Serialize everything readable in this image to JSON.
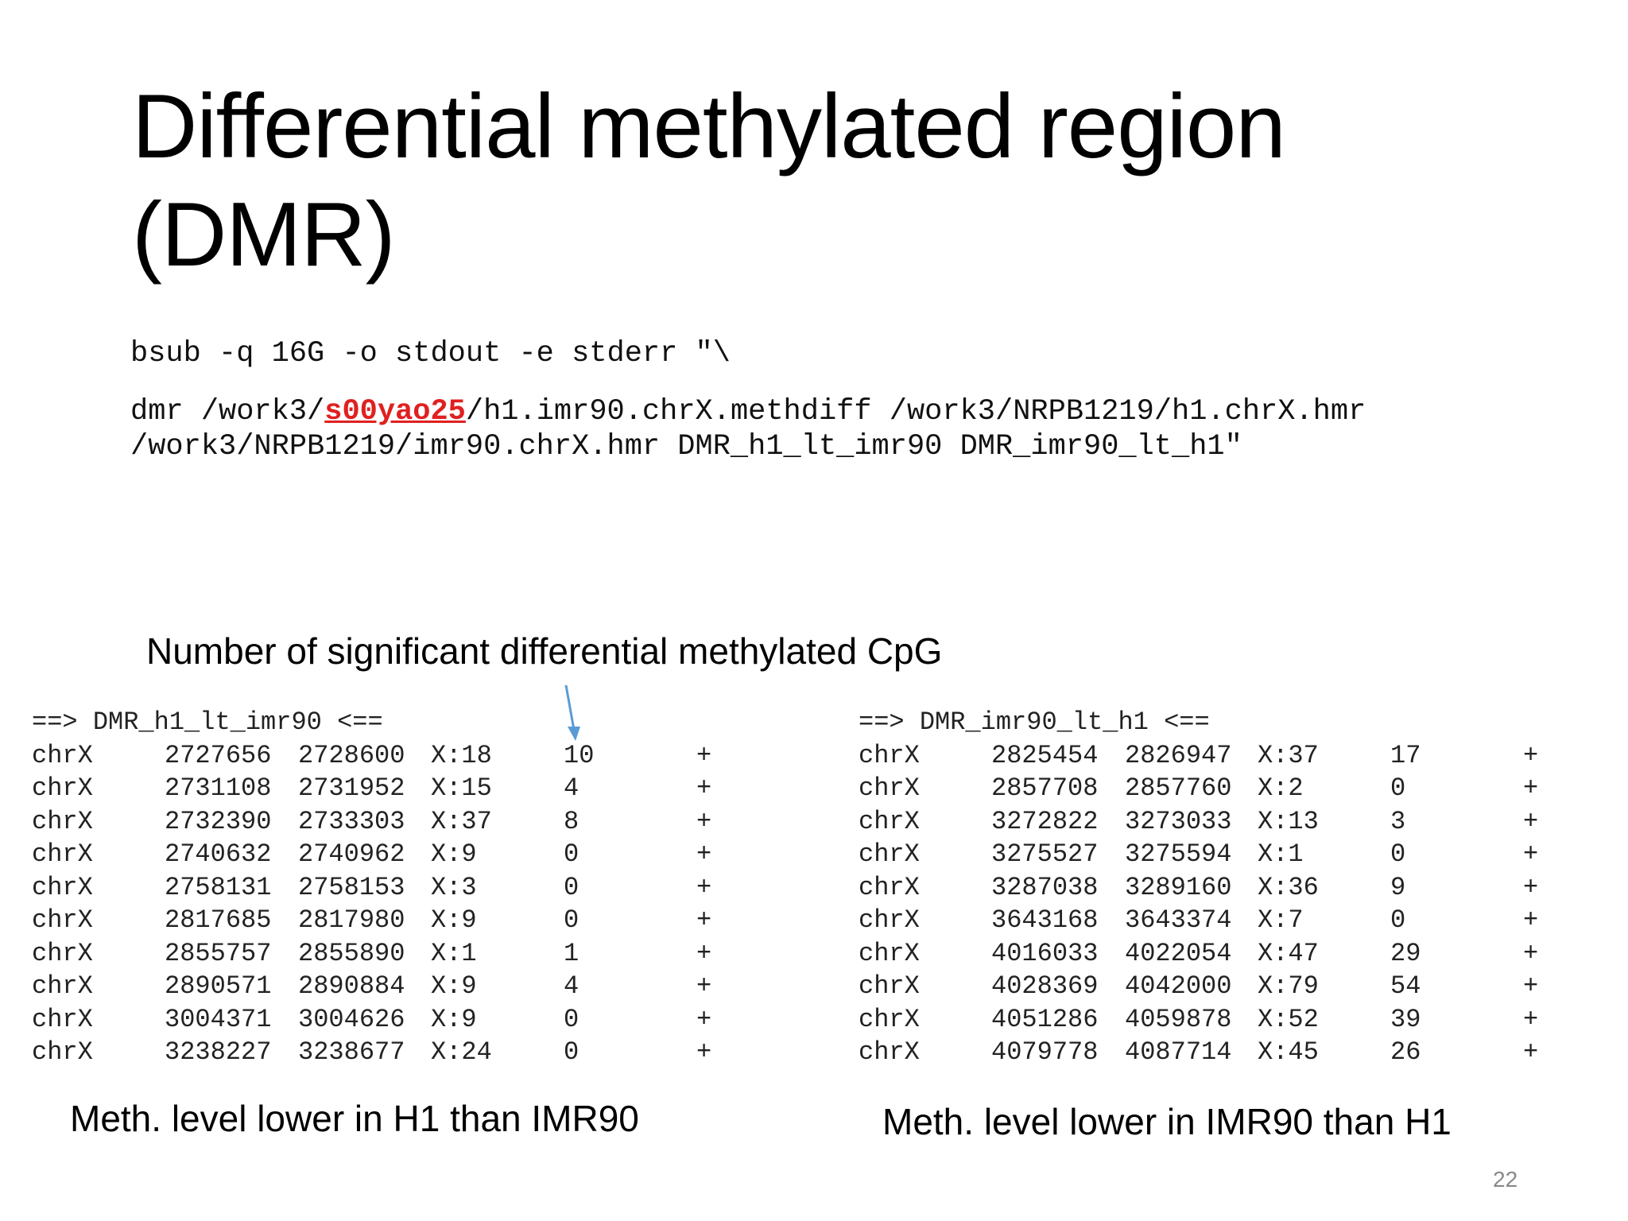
{
  "slide": {
    "title_line1": "Differential methylated region",
    "title_line2": "(DMR)",
    "page_number": "22"
  },
  "command": {
    "line1": "bsub -q 16G -o stdout -e stderr \"\\",
    "line2_prefix": "dmr /work3/",
    "line2_user": "s00yao25",
    "line2_suffix": "/h1.imr90.chrX.methdiff /work3/NRPB1219/h1.chrX.hmr",
    "line3": "/work3/NRPB1219/imr90.chrX.hmr DMR_h1_lt_imr90 DMR_imr90_lt_h1\"",
    "user_color": "#e02020"
  },
  "annotation": {
    "label": "Number of significant differential methylated CpG",
    "arrow_color": "#5b9bd5"
  },
  "left_block": {
    "header": "==> DMR_h1_lt_imr90 <==",
    "caption": "Meth. level lower in H1 than IMR90",
    "rows": [
      [
        "chrX",
        "2727656",
        "2728600",
        "X:18",
        "10",
        "+"
      ],
      [
        "chrX",
        "2731108",
        "2731952",
        "X:15",
        "4",
        "+"
      ],
      [
        "chrX",
        "2732390",
        "2733303",
        "X:37",
        "8",
        "+"
      ],
      [
        "chrX",
        "2740632",
        "2740962",
        "X:9",
        "0",
        "+"
      ],
      [
        "chrX",
        "2758131",
        "2758153",
        "X:3",
        "0",
        "+"
      ],
      [
        "chrX",
        "2817685",
        "2817980",
        "X:9",
        "0",
        "+"
      ],
      [
        "chrX",
        "2855757",
        "2855890",
        "X:1",
        "1",
        "+"
      ],
      [
        "chrX",
        "2890571",
        "2890884",
        "X:9",
        "4",
        "+"
      ],
      [
        "chrX",
        "3004371",
        "3004626",
        "X:9",
        "0",
        "+"
      ],
      [
        "chrX",
        "3238227",
        "3238677",
        "X:24",
        "0",
        "+"
      ]
    ]
  },
  "right_block": {
    "header": "==> DMR_imr90_lt_h1 <==",
    "caption": "Meth. level lower in IMR90 than H1",
    "rows": [
      [
        "chrX",
        "2825454",
        "2826947",
        "X:37",
        "17",
        "+"
      ],
      [
        "chrX",
        "2857708",
        "2857760",
        "X:2",
        "0",
        "+"
      ],
      [
        "chrX",
        "3272822",
        "3273033",
        "X:13",
        "3",
        "+"
      ],
      [
        "chrX",
        "3275527",
        "3275594",
        "X:1",
        "0",
        "+"
      ],
      [
        "chrX",
        "3287038",
        "3289160",
        "X:36",
        "9",
        "+"
      ],
      [
        "chrX",
        "3643168",
        "3643374",
        "X:7",
        "0",
        "+"
      ],
      [
        "chrX",
        "4016033",
        "4022054",
        "X:47",
        "29",
        "+"
      ],
      [
        "chrX",
        "4028369",
        "4042000",
        "X:79",
        "54",
        "+"
      ],
      [
        "chrX",
        "4051286",
        "4059878",
        "X:52",
        "39",
        "+"
      ],
      [
        "chrX",
        "4079778",
        "4087714",
        "X:45",
        "26",
        "+"
      ]
    ]
  }
}
